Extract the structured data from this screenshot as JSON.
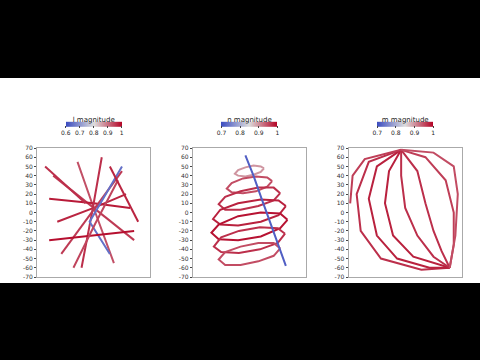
{
  "chart_data": [
    {
      "type": "line",
      "colorbar": {
        "title": "l magnitude",
        "range": [
          0.6,
          1
        ],
        "ticks": [
          0.6,
          0.7,
          0.8,
          0.9,
          1
        ]
      },
      "xlim": [
        -70,
        70
      ],
      "ylim": [
        -70,
        70
      ],
      "yticks": [
        -70,
        -60,
        -50,
        -40,
        -30,
        -20,
        -10,
        0,
        10,
        20,
        30,
        40,
        50,
        60,
        70
      ],
      "tick_labels": "y",
      "series": [
        {
          "x": [
            -50,
            0,
            50
          ],
          "y": [
            40,
            5,
            -30
          ],
          "magnitude": 0.95
        },
        {
          "x": [
            -45,
            0,
            40
          ],
          "y": [
            -10,
            5,
            20
          ],
          "magnitude": 0.97
        },
        {
          "x": [
            -20,
            2,
            25
          ],
          "y": [
            55,
            0,
            -55
          ],
          "magnitude": 0.93
        },
        {
          "x": [
            -55,
            0,
            45
          ],
          "y": [
            15,
            10,
            5
          ],
          "magnitude": 0.98
        },
        {
          "x": [
            10,
            -2,
            -15
          ],
          "y": [
            60,
            0,
            -60
          ],
          "magnitude": 0.96
        },
        {
          "x": [
            -40,
            0,
            35
          ],
          "y": [
            -45,
            3,
            45
          ],
          "magnitude": 0.95
        },
        {
          "x": [
            35,
            -5,
            20
          ],
          "y": [
            50,
            -10,
            -45
          ],
          "magnitude": 0.65
        },
        {
          "x": [
            -55,
            0,
            50
          ],
          "y": [
            -30,
            -25,
            -20
          ],
          "magnitude": 0.99
        },
        {
          "x": [
            -25,
            2,
            30
          ],
          "y": [
            -60,
            -12,
            35
          ],
          "magnitude": 0.94
        },
        {
          "x": [
            20,
            38,
            55
          ],
          "y": [
            50,
            20,
            -10
          ],
          "magnitude": 0.97
        },
        {
          "x": [
            -60,
            -35,
            -10
          ],
          "y": [
            50,
            30,
            10
          ],
          "magnitude": 0.96
        }
      ]
    },
    {
      "type": "line",
      "colorbar": {
        "title": "n magnitude",
        "range": [
          0.7,
          1
        ],
        "ticks": [
          0.7,
          0.8,
          0.9,
          1
        ]
      },
      "xlim": [
        -70,
        70
      ],
      "ylim": [
        -70,
        70
      ],
      "yticks": [
        -70,
        -60,
        -50,
        -40,
        -30,
        -20,
        -10,
        0,
        10,
        20,
        30,
        40,
        50,
        60,
        70
      ],
      "tick_labels": "y",
      "series": [
        {
          "x": [
            18,
            14,
            5,
            -5,
            -14,
            -18,
            -14,
            -5,
            5,
            14,
            18
          ],
          "y": [
            48,
            50,
            51,
            49,
            46,
            42,
            40,
            39,
            41,
            44,
            48
          ],
          "magnitude": 0.9
        },
        {
          "x": [
            28,
            22,
            8,
            -8,
            -22,
            -28,
            -22,
            -8,
            8,
            22,
            28
          ],
          "y": [
            34,
            38,
            39,
            37,
            32,
            26,
            22,
            21,
            23,
            28,
            34
          ],
          "magnitude": 0.95
        },
        {
          "x": [
            38,
            30,
            11,
            -11,
            -30,
            -38,
            -30,
            -11,
            11,
            30,
            38
          ],
          "y": [
            21,
            27,
            27,
            23,
            17,
            9,
            3,
            3,
            7,
            13,
            21
          ],
          "magnitude": 0.97
        },
        {
          "x": [
            45,
            36,
            14,
            -14,
            -36,
            -45,
            -36,
            -14,
            14,
            36,
            45
          ],
          "y": [
            7,
            13,
            14,
            10,
            3,
            -7,
            -13,
            -14,
            -10,
            -3,
            7
          ],
          "magnitude": 0.98
        },
        {
          "x": [
            47,
            38,
            14,
            -14,
            -38,
            -47,
            -38,
            -14,
            14,
            38,
            47
          ],
          "y": [
            -8,
            -1,
            0,
            -4,
            -13,
            -22,
            -29,
            -30,
            -26,
            -17,
            -8
          ],
          "magnitude": 0.99
        },
        {
          "x": [
            44,
            35,
            13,
            -13,
            -35,
            -44,
            -35,
            -13,
            13,
            35,
            44
          ],
          "y": [
            -23,
            -17,
            -16,
            -20,
            -27,
            -37,
            -43,
            -44,
            -40,
            -33,
            -23
          ],
          "magnitude": 0.97
        },
        {
          "x": [
            38,
            30,
            11,
            -11,
            -30,
            -38,
            -30,
            -11,
            11,
            30,
            38
          ],
          "y": [
            -39,
            -33,
            -33,
            -37,
            -43,
            -51,
            -57,
            -57,
            -53,
            -47,
            -39
          ],
          "magnitude": 0.95
        },
        {
          "x": [
            -5,
            5,
            15,
            25,
            35,
            45
          ],
          "y": [
            62,
            40,
            15,
            -10,
            -35,
            -58
          ],
          "magnitude": 0.72
        }
      ]
    },
    {
      "type": "line",
      "colorbar": {
        "title": "m magnitude",
        "range": [
          0.7,
          1
        ],
        "ticks": [
          0.7,
          0.8,
          0.9,
          1
        ]
      },
      "xlim": [
        -70,
        70
      ],
      "ylim": [
        -70,
        70
      ],
      "yticks": [
        -70,
        -60,
        -50,
        -40,
        -30,
        -20,
        -10,
        0,
        10,
        20,
        30,
        40,
        50,
        60,
        70
      ],
      "tick_labels": "y",
      "series": [
        {
          "x": [
            -5,
            -45,
            -60,
            -55,
            -30,
            20,
            55
          ],
          "y": [
            68,
            55,
            20,
            -20,
            -50,
            -62,
            -60
          ],
          "magnitude": 0.97
        },
        {
          "x": [
            -5,
            -35,
            -45,
            -35,
            -10,
            30,
            55
          ],
          "y": [
            68,
            50,
            15,
            -25,
            -50,
            -60,
            -60
          ],
          "magnitude": 0.98
        },
        {
          "x": [
            -5,
            -20,
            -25,
            -15,
            10,
            55
          ],
          "y": [
            68,
            45,
            10,
            -25,
            -48,
            -60
          ],
          "magnitude": 0.98
        },
        {
          "x": [
            -5,
            -5,
            0,
            15,
            35,
            55
          ],
          "y": [
            68,
            40,
            5,
            -25,
            -48,
            -60
          ],
          "magnitude": 0.97
        },
        {
          "x": [
            -5,
            15,
            25,
            35,
            45,
            55
          ],
          "y": [
            68,
            45,
            10,
            -20,
            -42,
            -60
          ],
          "magnitude": 0.97
        },
        {
          "x": [
            -5,
            25,
            50,
            60,
            60,
            55
          ],
          "y": [
            68,
            60,
            35,
            0,
            -35,
            -60
          ],
          "magnitude": 0.96
        },
        {
          "x": [
            -5,
            35,
            60,
            65,
            62,
            55
          ],
          "y": [
            68,
            65,
            50,
            20,
            -25,
            -60
          ],
          "magnitude": 0.95
        },
        {
          "x": [
            -5,
            -50,
            -65,
            -68
          ],
          "y": [
            68,
            58,
            40,
            10
          ],
          "magnitude": 0.96
        }
      ]
    }
  ]
}
